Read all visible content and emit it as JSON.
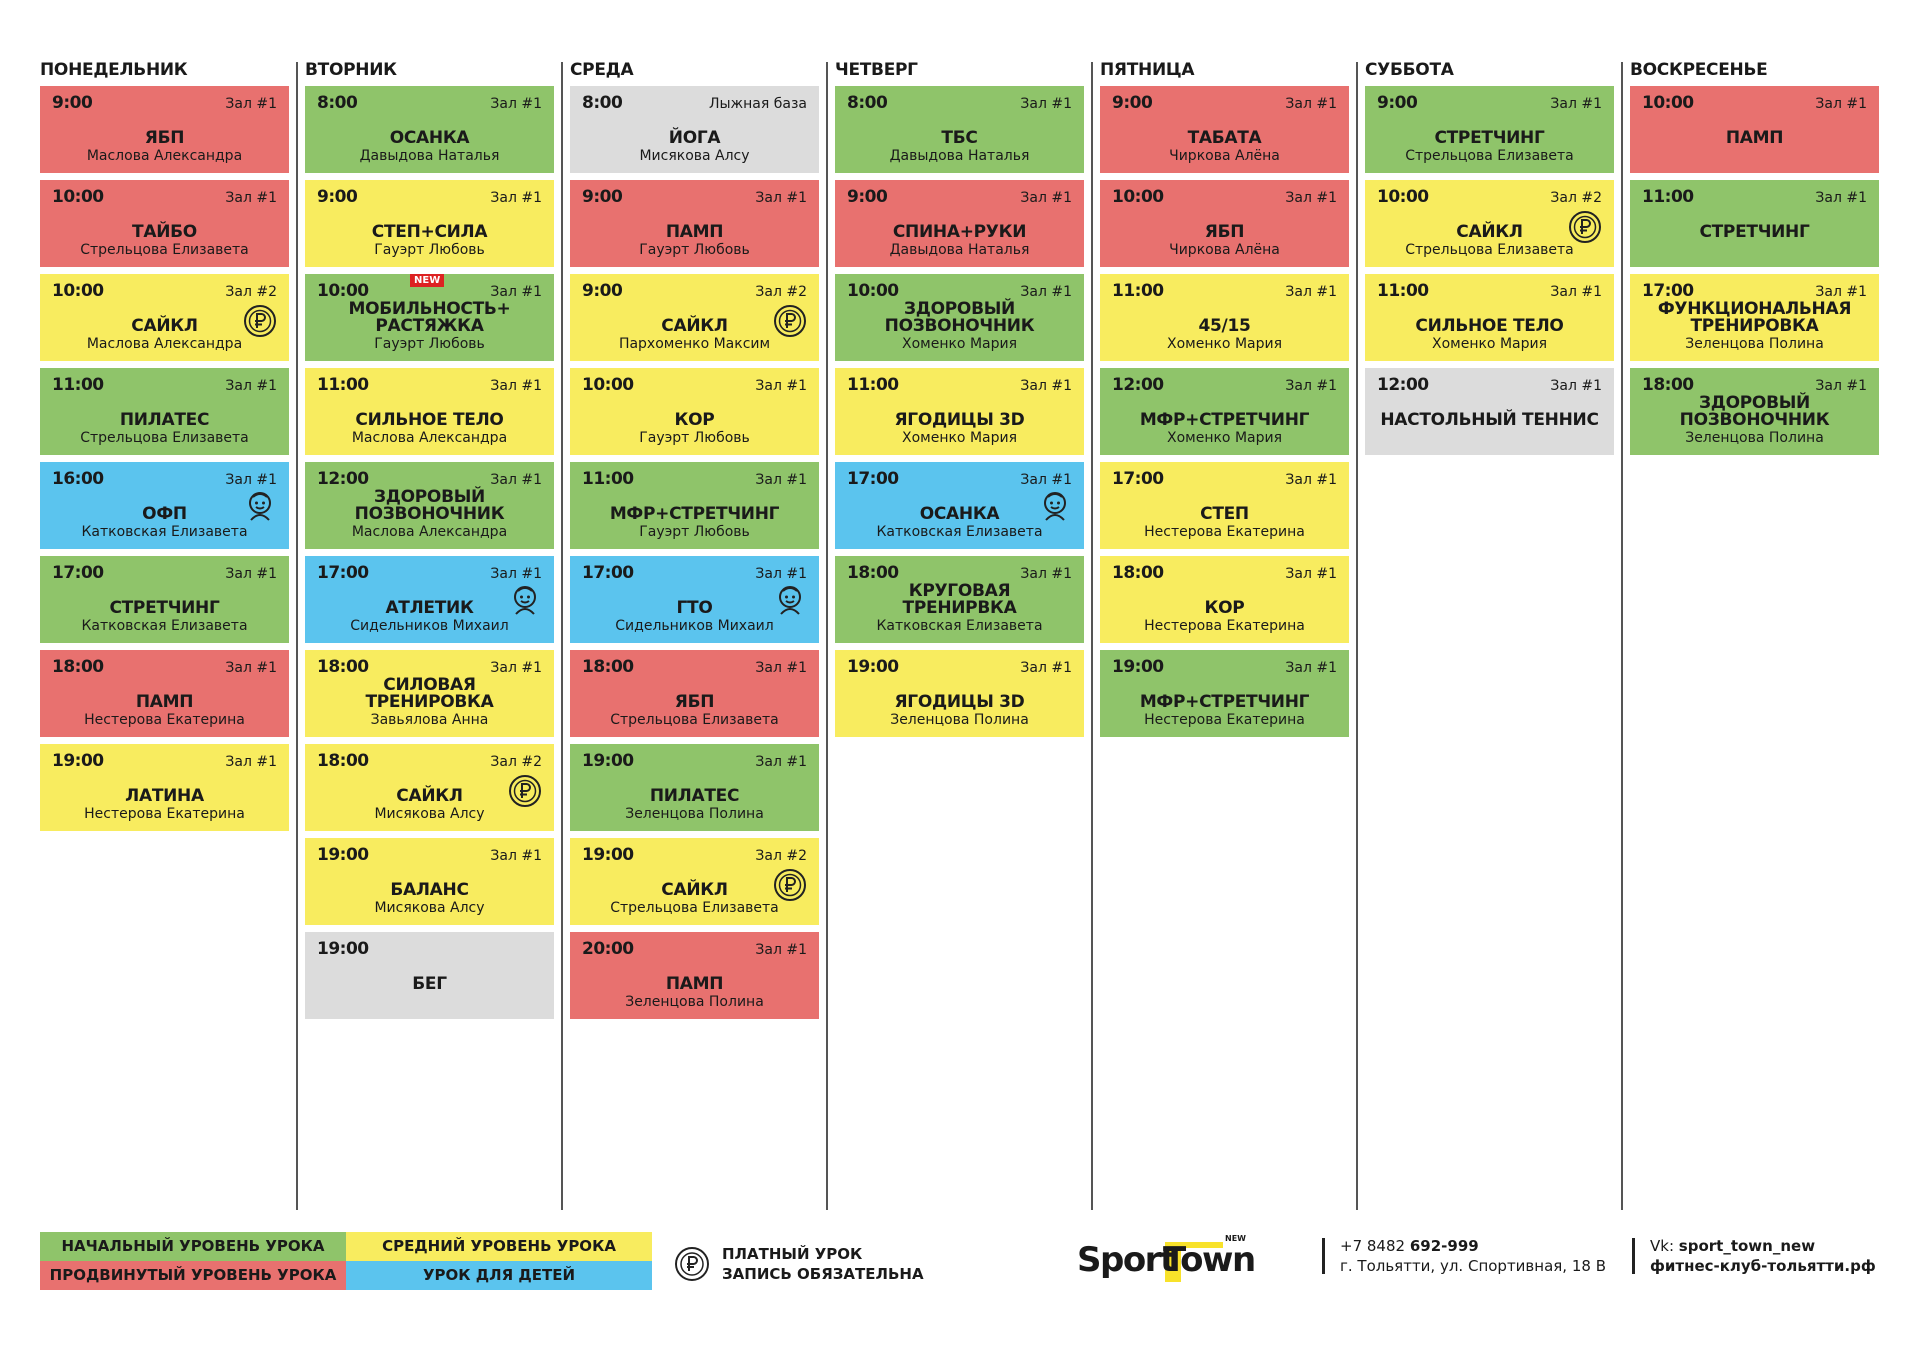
{
  "days": [
    {
      "name": "ПОНЕДЕЛЬНИК",
      "classes": [
        {
          "time": "9:00",
          "hall": "Зал #1",
          "title": "ЯБП",
          "trainer": "Маслова Александра",
          "color": "#e8716f"
        },
        {
          "time": "10:00",
          "hall": "Зал #1",
          "title": "ТАЙБО",
          "trainer": "Стрельцова Елизавета",
          "color": "#e8716f"
        },
        {
          "time": "10:00",
          "hall": "Зал #2",
          "title": "САЙКЛ",
          "trainer": "Маслова Александра",
          "color": "#f8ec5f",
          "paid": true
        },
        {
          "time": "11:00",
          "hall": "Зал #1",
          "title": "ПИЛАТЕС",
          "trainer": "Стрельцова Елизавета",
          "color": "#8fc46a"
        },
        {
          "time": "16:00",
          "hall": "Зал #1",
          "title": "ОФП",
          "trainer": "Катковская Елизавета",
          "color": "#5bc4ee",
          "kids": true
        },
        {
          "time": "17:00",
          "hall": "Зал #1",
          "title": "СТРЕТЧИНГ",
          "trainer": "Катковская Елизавета",
          "color": "#8fc46a"
        },
        {
          "time": "18:00",
          "hall": "Зал #1",
          "title": "ПАМП",
          "trainer": "Нестерова Екатерина",
          "color": "#e8716f"
        },
        {
          "time": "19:00",
          "hall": "Зал #1",
          "title": "ЛАТИНА",
          "trainer": "Нестерова Екатерина",
          "color": "#f8ec5f"
        }
      ]
    },
    {
      "name": "ВТОРНИК",
      "classes": [
        {
          "time": "8:00",
          "hall": "Зал #1",
          "title": "ОСАНКА",
          "trainer": "Давыдова Наталья",
          "color": "#8fc46a"
        },
        {
          "time": "9:00",
          "hall": "Зал #1",
          "title": "СТЕП+СИЛА",
          "trainer": "Гауэрт Любовь",
          "color": "#f8ec5f"
        },
        {
          "time": "10:00",
          "hall": "Зал #1",
          "title": "МОБИЛЬНОСТЬ+\nРАСТЯЖКА",
          "trainer": "Гауэрт Любовь",
          "color": "#8fc46a",
          "badge": "NEW"
        },
        {
          "time": "11:00",
          "hall": "Зал #1",
          "title": "СИЛЬНОЕ ТЕЛО",
          "trainer": "Маслова Александра",
          "color": "#f8ec5f"
        },
        {
          "time": "12:00",
          "hall": "Зал #1",
          "title": "ЗДОРОВЫЙ\nПОЗВОНОЧНИК",
          "trainer": "Маслова Александра",
          "color": "#8fc46a"
        },
        {
          "time": "17:00",
          "hall": "Зал #1",
          "title": "АТЛЕТИК",
          "trainer": "Сидельников Михаил",
          "color": "#5bc4ee",
          "kids": true
        },
        {
          "time": "18:00",
          "hall": "Зал #1",
          "title": "СИЛОВАЯ\nТРЕНИРОВКА",
          "trainer": "Завьялова Анна",
          "color": "#f8ec5f"
        },
        {
          "time": "18:00",
          "hall": "Зал #2",
          "title": "САЙКЛ",
          "trainer": "Мисякова Алсу",
          "color": "#f8ec5f",
          "paid": true
        },
        {
          "time": "19:00",
          "hall": "Зал #1",
          "title": "БАЛАНС",
          "trainer": "Мисякова Алсу",
          "color": "#f8ec5f"
        },
        {
          "time": "19:00",
          "title": "БЕГ",
          "color": "#dcdcdc"
        }
      ]
    },
    {
      "name": "СРЕДА",
      "classes": [
        {
          "time": "8:00",
          "hall": "Лыжная база",
          "title": "ЙОГА",
          "trainer": "Мисякова Алсу",
          "color": "#dcdcdc"
        },
        {
          "time": "9:00",
          "hall": "Зал #1",
          "title": "ПАМП",
          "trainer": "Гауэрт Любовь",
          "color": "#e8716f"
        },
        {
          "time": "9:00",
          "hall": "Зал #2",
          "title": "САЙКЛ",
          "trainer": "Пархоменко Максим",
          "color": "#f8ec5f",
          "paid": true
        },
        {
          "time": "10:00",
          "hall": "Зал #1",
          "title": "КОР",
          "trainer": "Гауэрт Любовь",
          "color": "#f8ec5f"
        },
        {
          "time": "11:00",
          "hall": "Зал #1",
          "title": "МФР+СТРЕТЧИНГ",
          "trainer": "Гауэрт Любовь",
          "color": "#8fc46a"
        },
        {
          "time": "17:00",
          "hall": "Зал #1",
          "title": "ГТО",
          "trainer": "Сидельников Михаил",
          "color": "#5bc4ee",
          "kids": true
        },
        {
          "time": "18:00",
          "hall": "Зал #1",
          "title": "ЯБП",
          "trainer": "Стрельцова Елизавета",
          "color": "#e8716f"
        },
        {
          "time": "19:00",
          "hall": "Зал #1",
          "title": "ПИЛАТЕС",
          "trainer": "Зеленцова Полина",
          "color": "#8fc46a"
        },
        {
          "time": "19:00",
          "hall": "Зал #2",
          "title": "САЙКЛ",
          "trainer": "Стрельцова Елизавета",
          "color": "#f8ec5f",
          "paid": true
        },
        {
          "time": "20:00",
          "hall": "Зал #1",
          "title": "ПАМП",
          "trainer": "Зеленцова Полина",
          "color": "#e8716f"
        }
      ]
    },
    {
      "name": "ЧЕТВЕРГ",
      "classes": [
        {
          "time": "8:00",
          "hall": "Зал #1",
          "title": "ТБС",
          "trainer": "Давыдова Наталья",
          "color": "#8fc46a"
        },
        {
          "time": "9:00",
          "hall": "Зал #1",
          "title": "СПИНА+РУКИ",
          "trainer": "Давыдова Наталья",
          "color": "#e8716f"
        },
        {
          "time": "10:00",
          "hall": "Зал #1",
          "title": "ЗДОРОВЫЙ\nПОЗВОНОЧНИК",
          "trainer": "Хоменко Мария",
          "color": "#8fc46a"
        },
        {
          "time": "11:00",
          "hall": "Зал #1",
          "title": "ЯГОДИЦЫ 3D",
          "trainer": "Хоменко Мария",
          "color": "#f8ec5f"
        },
        {
          "time": "17:00",
          "hall": "Зал #1",
          "title": "ОСАНКА",
          "trainer": "Катковская Елизавета",
          "color": "#5bc4ee",
          "kids": true
        },
        {
          "time": "18:00",
          "hall": "Зал #1",
          "title": "КРУГОВАЯ\nТРЕНИРВКА",
          "trainer": "Катковская Елизавета",
          "color": "#8fc46a"
        },
        {
          "time": "19:00",
          "hall": "Зал #1",
          "title": "ЯГОДИЦЫ 3D",
          "trainer": "Зеленцова Полина",
          "color": "#f8ec5f"
        }
      ]
    },
    {
      "name": "ПЯТНИЦА",
      "classes": [
        {
          "time": "9:00",
          "hall": "Зал #1",
          "title": "ТАБАТА",
          "trainer": "Чиркова Алёна",
          "color": "#e8716f"
        },
        {
          "time": "10:00",
          "hall": "Зал #1",
          "title": "ЯБП",
          "trainer": "Чиркова Алёна",
          "color": "#e8716f"
        },
        {
          "time": "11:00",
          "hall": "Зал #1",
          "title": "45/15",
          "trainer": "Хоменко Мария",
          "color": "#f8ec5f"
        },
        {
          "time": "12:00",
          "hall": "Зал #1",
          "title": "МФР+СТРЕТЧИНГ",
          "trainer": "Хоменко Мария",
          "color": "#8fc46a"
        },
        {
          "time": "17:00",
          "hall": "Зал #1",
          "title": "СТЕП",
          "trainer": "Нестерова Екатерина",
          "color": "#f8ec5f"
        },
        {
          "time": "18:00",
          "hall": "Зал #1",
          "title": "КОР",
          "trainer": "Нестерова Екатерина",
          "color": "#f8ec5f"
        },
        {
          "time": "19:00",
          "hall": "Зал #1",
          "title": "МФР+СТРЕТЧИНГ",
          "trainer": "Нестерова Екатерина",
          "color": "#8fc46a"
        }
      ]
    },
    {
      "name": "СУББОТА",
      "classes": [
        {
          "time": "9:00",
          "hall": "Зал #1",
          "title": "СТРЕТЧИНГ",
          "trainer": "Стрельцова Елизавета",
          "color": "#8fc46a"
        },
        {
          "time": "10:00",
          "hall": "Зал #2",
          "title": "САЙКЛ",
          "trainer": "Стрельцова Елизавета",
          "color": "#f8ec5f",
          "paid": true
        },
        {
          "time": "11:00",
          "hall": "Зал #1",
          "title": "СИЛЬНОЕ ТЕЛО",
          "trainer": "Хоменко Мария",
          "color": "#f8ec5f"
        },
        {
          "time": "12:00",
          "hall": "Зал #1",
          "title": "НАСТОЛЬНЫЙ ТЕННИС",
          "color": "#dcdcdc"
        }
      ]
    },
    {
      "name": "ВОСКРЕСЕНЬЕ",
      "classes": [
        {
          "time": "10:00",
          "hall": "Зал #1",
          "title": "ПАМП",
          "color": "#e8716f"
        },
        {
          "time": "11:00",
          "hall": "Зал #1",
          "title": "СТРЕТЧИНГ",
          "color": "#8fc46a"
        },
        {
          "time": "17:00",
          "hall": "Зал #1",
          "title": "ФУНКЦИОНАЛЬНАЯ\nТРЕНИРОВКА",
          "trainer": "Зеленцова Полина",
          "color": "#f8ec5f"
        },
        {
          "time": "18:00",
          "hall": "Зал #1",
          "title": "ЗДОРОВЫЙ\nПОЗВОНОЧНИК",
          "trainer": "Зеленцова Полина",
          "color": "#8fc46a"
        }
      ]
    }
  ],
  "legend": [
    {
      "text": "НАЧАЛЬНЫЙ УРОВЕНЬ УРОКА",
      "color": "#8fc46a"
    },
    {
      "text": "СРЕДНИЙ УРОВЕНЬ УРОКА",
      "color": "#f8ec5f"
    },
    {
      "text": "ПРОДВИНУТЫЙ УРОВЕНЬ УРОКА",
      "color": "#e8716f"
    },
    {
      "text": "УРОК ДЛЯ ДЕТЕЙ",
      "color": "#5bc4ee"
    }
  ],
  "paid_note": [
    "ПЛАТНЫЙ УРОК",
    "ЗАПИСЬ ОБЯЗАТЕЛЬНА"
  ],
  "logo": {
    "part1": "Sport",
    "part2": "Town",
    "badge": "NEW"
  },
  "contacts": {
    "phone_code": "+7 8482",
    "phone_number": "692-999",
    "address": "г. Тольятти, ул. Спортивная, 18 В",
    "vk_label": "Vk:",
    "vk_handle": "sport_town_new",
    "site": "фитнес-клуб-тольятти.рф"
  }
}
